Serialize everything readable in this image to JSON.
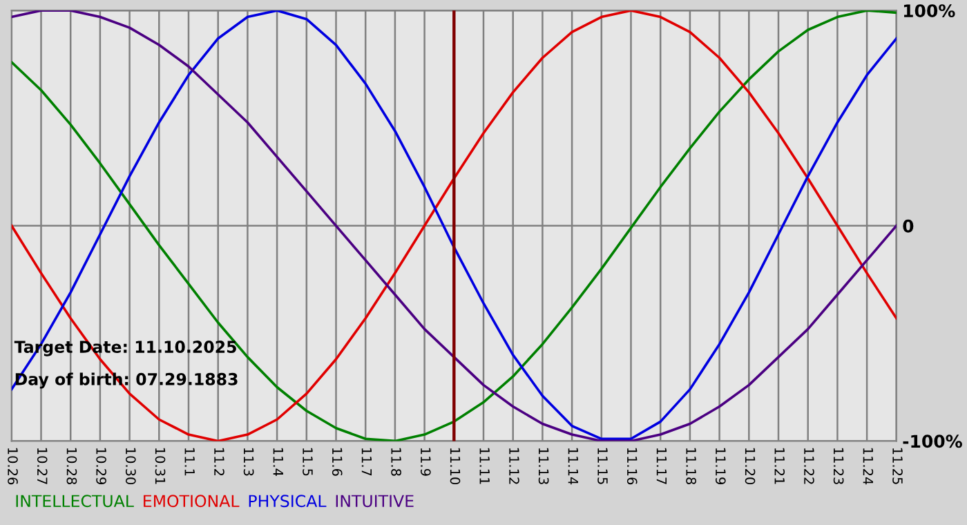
{
  "chart_data": {
    "type": "line",
    "categories": [
      "10.26",
      "10.27",
      "10.28",
      "10.29",
      "10.30",
      "10.31",
      "11.1",
      "11.2",
      "11.3",
      "11.4",
      "11.5",
      "11.6",
      "11.7",
      "11.8",
      "11.9",
      "11.10",
      "11.11",
      "11.12",
      "11.13",
      "11.14",
      "11.15",
      "11.16",
      "11.17",
      "11.18",
      "11.19",
      "11.20",
      "11.21",
      "11.22",
      "11.23",
      "11.24",
      "11.25"
    ],
    "series": [
      {
        "name": "INTELLECTUAL",
        "color": "#008000",
        "values": [
          76,
          63,
          47,
          29,
          10,
          -9,
          -27,
          -45,
          -61,
          -75,
          -86,
          -94,
          -99,
          -100,
          -97,
          -91,
          -82,
          -70,
          -55,
          -38,
          -20,
          -1,
          18,
          36,
          53,
          68,
          81,
          91,
          97,
          100,
          99
        ]
      },
      {
        "name": "EMOTIONAL",
        "color": "#e00000",
        "values": [
          0,
          -22,
          -43,
          -62,
          -78,
          -90,
          -97,
          -100,
          -97,
          -90,
          -78,
          -62,
          -43,
          -22,
          0,
          22,
          43,
          62,
          78,
          90,
          97,
          100,
          97,
          90,
          78,
          62,
          43,
          22,
          0,
          -22,
          -43
        ]
      },
      {
        "name": "PHYSICAL",
        "color": "#0000e0",
        "values": [
          -76,
          -55,
          -31,
          -4,
          23,
          48,
          70,
          87,
          97,
          100,
          96,
          84,
          66,
          44,
          18,
          -10,
          -36,
          -60,
          -79,
          -93,
          -99,
          -99,
          -91,
          -76,
          -55,
          -31,
          -4,
          23,
          48,
          70,
          87
        ]
      },
      {
        "name": "INTUITIVE",
        "color": "#4b0082",
        "values": [
          97,
          100,
          100,
          97,
          92,
          84,
          74,
          61,
          48,
          32,
          16,
          0,
          -16,
          -32,
          -48,
          -61,
          -74,
          -84,
          -92,
          -97,
          -100,
          -100,
          -97,
          -92,
          -84,
          -74,
          -61,
          -48,
          -32,
          -16,
          0
        ]
      }
    ],
    "ylim": [
      -100,
      100
    ],
    "yticks": [
      {
        "value": 100,
        "label": "100%"
      },
      0,
      {
        "value": -100,
        "label": "-100%"
      }
    ],
    "ref_lines": [
      {
        "axis": "x",
        "value": "11.10",
        "color": "#800000"
      }
    ],
    "annotations": [
      "Target Date: 11.10.2025",
      "Day of birth: 07.29.1883"
    ],
    "grid": true,
    "legend": "bottom left",
    "marker": "none",
    "line_style": "solid"
  }
}
